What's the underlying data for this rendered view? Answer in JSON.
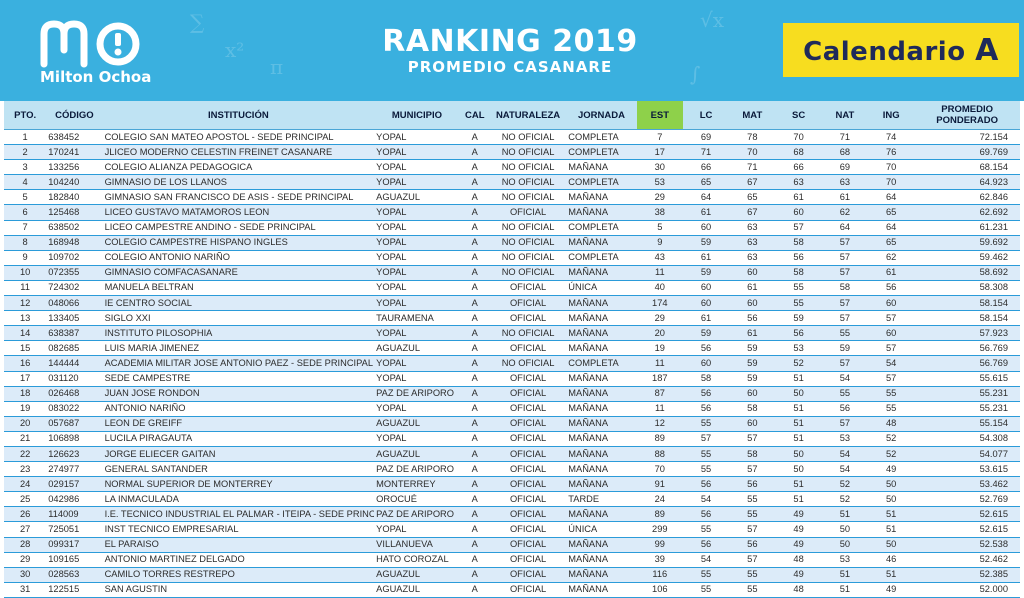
{
  "header": {
    "logo_text": "Milton Ochoa",
    "title": "RANKING 2019",
    "subtitle": "PROMEDIO CASANARE",
    "calendar_label": "Calendario",
    "calendar_letter": "A",
    "colors": {
      "banner": "#3ab0df",
      "calendar_box": "#f7dd1f",
      "est_header": "#8ed14a"
    }
  },
  "columns": [
    "PTO.",
    "CÓDIGO",
    "INSTITUCIÓN",
    "MUNICIPIO",
    "CAL",
    "NATURALEZA",
    "JORNADA",
    "EST",
    "LC",
    "MAT",
    "SC",
    "NAT",
    "ING",
    "PROMEDIO PONDERADO"
  ],
  "rows": [
    [
      "1",
      "638452",
      "COLEGIO SAN MATEO APOSTOL - SEDE PRINCIPAL",
      "YOPAL",
      "A",
      "NO OFICIAL",
      "COMPLETA",
      "7",
      "69",
      "78",
      "70",
      "71",
      "74",
      "72.154"
    ],
    [
      "2",
      "170241",
      "JLICEO MODERNO CELESTIN FREINET CASANARE",
      "YOPAL",
      "A",
      "NO OFICIAL",
      "COMPLETA",
      "17",
      "71",
      "70",
      "68",
      "68",
      "76",
      "69.769"
    ],
    [
      "3",
      "133256",
      "COLEGIO ALIANZA PEDAGOGICA",
      "YOPAL",
      "A",
      "NO OFICIAL",
      "MAÑANA",
      "30",
      "66",
      "71",
      "66",
      "69",
      "70",
      "68.154"
    ],
    [
      "4",
      "104240",
      "GIMNASIO DE LOS LLANOS",
      "YOPAL",
      "A",
      "NO OFICIAL",
      "COMPLETA",
      "53",
      "65",
      "67",
      "63",
      "63",
      "70",
      "64.923"
    ],
    [
      "5",
      "182840",
      "GIMNASIO SAN FRANCISCO DE ASIS - SEDE PRINCIPAL",
      "AGUAZUL",
      "A",
      "NO OFICIAL",
      "MAÑANA",
      "29",
      "64",
      "65",
      "61",
      "61",
      "64",
      "62.846"
    ],
    [
      "6",
      "125468",
      "LICEO GUSTAVO MATAMOROS LEON",
      "YOPAL",
      "A",
      "OFICIAL",
      "MAÑANA",
      "38",
      "61",
      "67",
      "60",
      "62",
      "65",
      "62.692"
    ],
    [
      "7",
      "638502",
      "LICEO CAMPESTRE ANDINO - SEDE PRINCIPAL",
      "YOPAL",
      "A",
      "NO OFICIAL",
      "COMPLETA",
      "5",
      "60",
      "63",
      "57",
      "64",
      "64",
      "61.231"
    ],
    [
      "8",
      "168948",
      "COLEGIO CAMPESTRE HISPANO INGLES",
      "YOPAL",
      "A",
      "NO OFICIAL",
      "MAÑANA",
      "9",
      "59",
      "63",
      "58",
      "57",
      "65",
      "59.692"
    ],
    [
      "9",
      "109702",
      "COLEGIO ANTONIO NARIÑO",
      "YOPAL",
      "A",
      "NO OFICIAL",
      "COMPLETA",
      "43",
      "61",
      "63",
      "56",
      "57",
      "62",
      "59.462"
    ],
    [
      "10",
      "072355",
      "GIMNASIO COMFACASANARE",
      "YOPAL",
      "A",
      "NO OFICIAL",
      "MAÑANA",
      "11",
      "59",
      "60",
      "58",
      "57",
      "61",
      "58.692"
    ],
    [
      "11",
      "724302",
      "MANUELA BELTRAN",
      "YOPAL",
      "A",
      "OFICIAL",
      "ÚNICA",
      "40",
      "60",
      "61",
      "55",
      "58",
      "56",
      "58.308"
    ],
    [
      "12",
      "048066",
      "IE CENTRO SOCIAL",
      "YOPAL",
      "A",
      "OFICIAL",
      "MAÑANA",
      "174",
      "60",
      "60",
      "55",
      "57",
      "60",
      "58.154"
    ],
    [
      "13",
      "133405",
      "SIGLO XXI",
      "TAURAMENA",
      "A",
      "OFICIAL",
      "MAÑANA",
      "29",
      "61",
      "56",
      "59",
      "57",
      "57",
      "58.154"
    ],
    [
      "14",
      "638387",
      "INSTITUTO PILOSOPHIA",
      "YOPAL",
      "A",
      "NO OFICIAL",
      "MAÑANA",
      "20",
      "59",
      "61",
      "56",
      "55",
      "60",
      "57.923"
    ],
    [
      "15",
      "082685",
      "LUIS MARIA JIMENEZ",
      "AGUAZUL",
      "A",
      "OFICIAL",
      "MAÑANA",
      "19",
      "56",
      "59",
      "53",
      "59",
      "57",
      "56.769"
    ],
    [
      "16",
      "144444",
      "ACADEMIA MILITAR JOSE ANTONIO PAEZ - SEDE PRINCIPAL",
      "YOPAL",
      "A",
      "NO OFICIAL",
      "COMPLETA",
      "11",
      "60",
      "59",
      "52",
      "57",
      "54",
      "56.769"
    ],
    [
      "17",
      "031120",
      "SEDE CAMPESTRE",
      "YOPAL",
      "A",
      "OFICIAL",
      "MAÑANA",
      "187",
      "58",
      "59",
      "51",
      "54",
      "57",
      "55.615"
    ],
    [
      "18",
      "026468",
      "JUAN JOSE RONDON",
      "PAZ DE ARIPORO",
      "A",
      "OFICIAL",
      "MAÑANA",
      "87",
      "56",
      "60",
      "50",
      "55",
      "55",
      "55.231"
    ],
    [
      "19",
      "083022",
      "ANTONIO NARIÑO",
      "YOPAL",
      "A",
      "OFICIAL",
      "MAÑANA",
      "11",
      "56",
      "58",
      "51",
      "56",
      "55",
      "55.231"
    ],
    [
      "20",
      "057687",
      "LEON DE GREIFF",
      "AGUAZUL",
      "A",
      "OFICIAL",
      "MAÑANA",
      "12",
      "55",
      "60",
      "51",
      "57",
      "48",
      "55.154"
    ],
    [
      "21",
      "106898",
      "LUCILA PIRAGAUTA",
      "YOPAL",
      "A",
      "OFICIAL",
      "MAÑANA",
      "89",
      "57",
      "57",
      "51",
      "53",
      "52",
      "54.308"
    ],
    [
      "22",
      "126623",
      "JORGE ELIECER GAITAN",
      "AGUAZUL",
      "A",
      "OFICIAL",
      "MAÑANA",
      "88",
      "55",
      "58",
      "50",
      "54",
      "52",
      "54.077"
    ],
    [
      "23",
      "274977",
      "GENERAL SANTANDER",
      "PAZ DE ARIPORO",
      "A",
      "OFICIAL",
      "MAÑANA",
      "70",
      "55",
      "57",
      "50",
      "54",
      "49",
      "53.615"
    ],
    [
      "24",
      "029157",
      "NORMAL SUPERIOR DE MONTERREY",
      "MONTERREY",
      "A",
      "OFICIAL",
      "MAÑANA",
      "91",
      "56",
      "56",
      "51",
      "52",
      "50",
      "53.462"
    ],
    [
      "25",
      "042986",
      "LA INMACULADA",
      "OROCUÉ",
      "A",
      "OFICIAL",
      "TARDE",
      "24",
      "54",
      "55",
      "51",
      "52",
      "50",
      "52.769"
    ],
    [
      "26",
      "114009",
      "I.E. TECNICO INDUSTRIAL EL PALMAR - ITEIPA - SEDE PRINCIPA",
      "PAZ DE ARIPORO",
      "A",
      "OFICIAL",
      "MAÑANA",
      "89",
      "56",
      "55",
      "49",
      "51",
      "51",
      "52.615"
    ],
    [
      "27",
      "725051",
      "INST TECNICO EMPRESARIAL",
      "YOPAL",
      "A",
      "OFICIAL",
      "ÚNICA",
      "299",
      "55",
      "57",
      "49",
      "50",
      "51",
      "52.615"
    ],
    [
      "28",
      "099317",
      "EL PARAISO",
      "VILLANUEVA",
      "A",
      "OFICIAL",
      "MAÑANA",
      "99",
      "56",
      "56",
      "49",
      "50",
      "50",
      "52.538"
    ],
    [
      "29",
      "109165",
      "ANTONIO MARTINEZ DELGADO",
      "HATO COROZAL",
      "A",
      "OFICIAL",
      "MAÑANA",
      "39",
      "54",
      "57",
      "48",
      "53",
      "46",
      "52.462"
    ],
    [
      "30",
      "028563",
      "CAMILO TORRES RESTREPO",
      "AGUAZUL",
      "A",
      "OFICIAL",
      "MAÑANA",
      "116",
      "55",
      "55",
      "49",
      "51",
      "51",
      "52.385"
    ],
    [
      "31",
      "122515",
      "SAN AGUSTIN",
      "AGUAZUL",
      "A",
      "OFICIAL",
      "MAÑANA",
      "106",
      "55",
      "55",
      "48",
      "51",
      "49",
      "52.000"
    ]
  ]
}
